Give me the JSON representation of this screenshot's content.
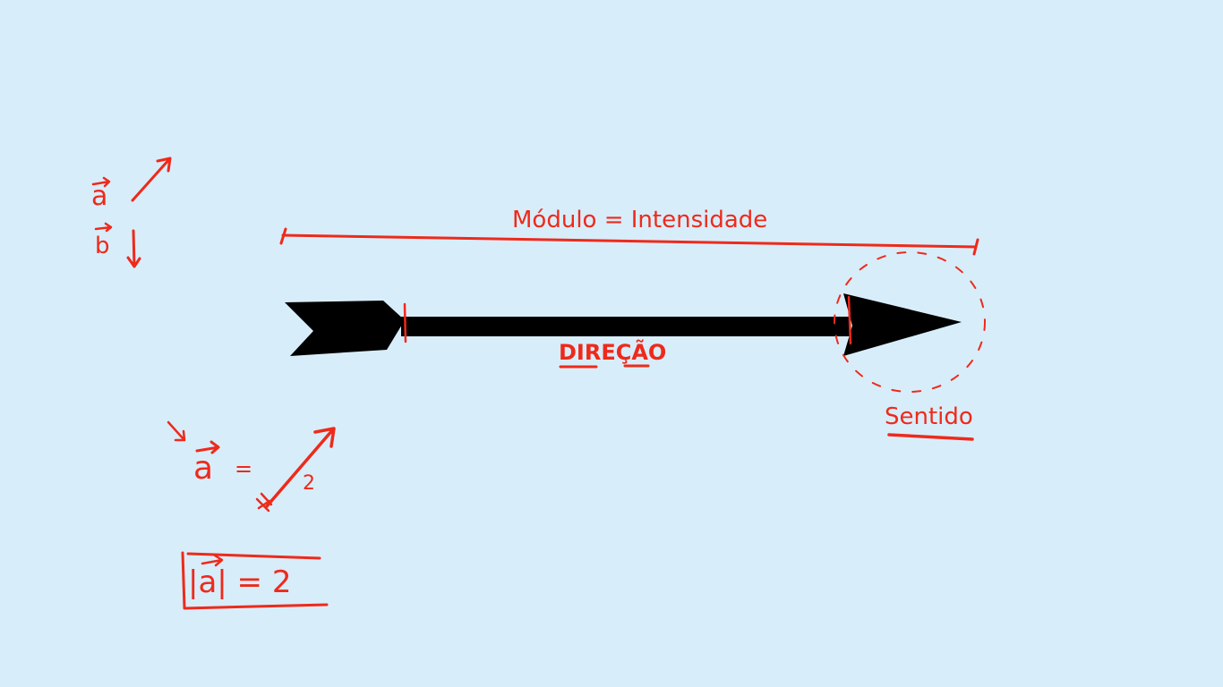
{
  "colors": {
    "background": "#d8edfa",
    "ink": "#ee2a1b",
    "arrow": "#000000"
  },
  "legend": {
    "vector_a": "a",
    "vector_b": "b"
  },
  "labels": {
    "modulo": "Módulo = Intensidade",
    "direcao": "DIREÇÃO",
    "sentido": "Sentido"
  },
  "example": {
    "vector": "a",
    "equals": "=",
    "length": "2"
  },
  "result": {
    "text": "|a| = 2"
  }
}
